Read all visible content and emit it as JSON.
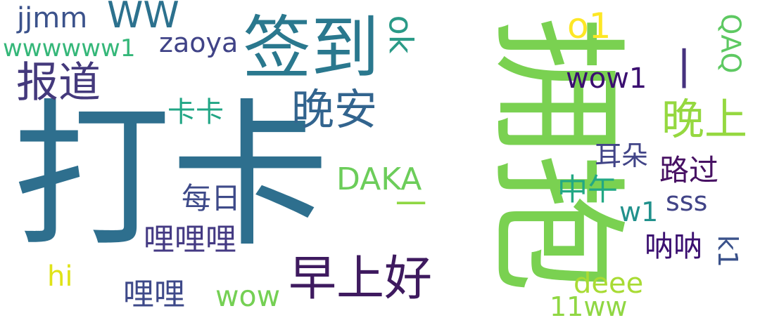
{
  "words": [
    {
      "text": "打卡",
      "color": "#2e6f8e"
    },
    {
      "text": "拥抱",
      "color": "#7ad151"
    },
    {
      "text": "签到",
      "color": "#2a788e"
    },
    {
      "text": "早上好",
      "color": "#3e1a5f"
    },
    {
      "text": "晚安",
      "color": "#32648e"
    },
    {
      "text": "报道",
      "color": "#44397c"
    },
    {
      "text": "晚上",
      "color": "#95d840"
    },
    {
      "text": "WW",
      "color": "#2c718e"
    },
    {
      "text": "jjmm",
      "color": "#3b528b"
    },
    {
      "text": "wwwwww1",
      "color": "#35b779"
    },
    {
      "text": "zaoya",
      "color": "#404387"
    },
    {
      "text": "ok",
      "color": "#2a9a87"
    },
    {
      "text": "o1",
      "color": "#fde725"
    },
    {
      "text": "一",
      "color": "#46327e"
    },
    {
      "text": "QAQ",
      "color": "#5ec962"
    },
    {
      "text": "wow1",
      "color": "#3b0f70"
    },
    {
      "text": "卡卡",
      "color": "#21a685"
    },
    {
      "text": "耳朵",
      "color": "#414487"
    },
    {
      "text": "路过",
      "color": "#471163"
    },
    {
      "text": "DAKA",
      "color": "#6ccd5a"
    },
    {
      "text": "中午",
      "color": "#22a884"
    },
    {
      "text": "每日",
      "color": "#3e4a89"
    },
    {
      "text": "一",
      "color": "#8fd744"
    },
    {
      "text": "sss",
      "color": "#414487"
    },
    {
      "text": "w1",
      "color": "#21918c"
    },
    {
      "text": "哩哩哩",
      "color": "#443a83"
    },
    {
      "text": "呐呐",
      "color": "#3b0f70"
    },
    {
      "text": "k1",
      "color": "#3b528b"
    },
    {
      "text": "hi",
      "color": "#dfe318"
    },
    {
      "text": "哩哩",
      "color": "#3e4989"
    },
    {
      "text": "wow",
      "color": "#75d054"
    },
    {
      "text": "deee",
      "color": "#a8db34"
    },
    {
      "text": "11ww",
      "color": "#90d743"
    }
  ]
}
